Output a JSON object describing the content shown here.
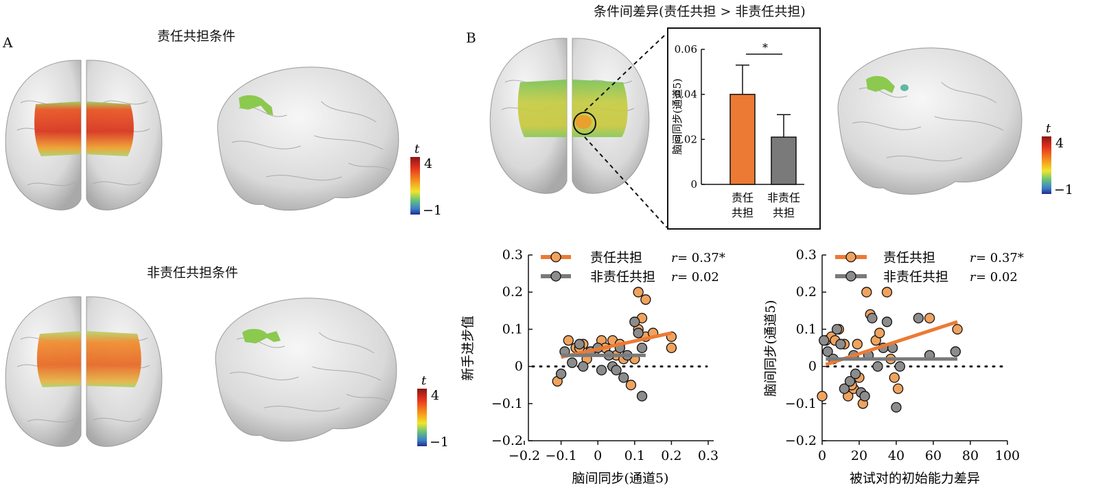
{
  "panel_a": {
    "label": "A",
    "title_top": "责任共担条件",
    "title_bottom": "非责任共担条件",
    "colorbar": {
      "symbol": "t",
      "max_label": "4",
      "min_label": "−1"
    }
  },
  "panel_b": {
    "label": "B",
    "title": "条件间差异(责任共担 > 非责任共担)",
    "colorbar": {
      "symbol": "t",
      "max_label": "4",
      "min_label": "−1"
    }
  },
  "inset_bar": {
    "ylabel": "脑间同步(通道5)",
    "yticks": [
      "0",
      "0.02",
      "0.04",
      "0.06"
    ],
    "sig_marker": "*",
    "cat1_l1": "责任",
    "cat1_l2": "共担",
    "cat2_l1": "非责任",
    "cat2_l2": "共担"
  },
  "scatter_left": {
    "ylabel": "新手进步值",
    "xlabel": "脑间同步(通道5)",
    "xticks": [
      "−0.2",
      "−0.1",
      "0",
      "0.1",
      "0.2",
      "0.3"
    ],
    "yticks": [
      "0.3",
      "0.2",
      "0.1",
      "0",
      "−0.1",
      "−0.2"
    ],
    "legend1": "责任共担",
    "r1": "= 0.37*",
    "legend2": "非责任共担",
    "r2": "= 0.02",
    "r_symbol": "r"
  },
  "scatter_right": {
    "ylabel": "脑间同步(通道5)",
    "xlabel": "被试对的初始能力差异",
    "xticks": [
      "0",
      "20",
      "40",
      "60",
      "80",
      "100"
    ],
    "yticks": [
      "0.3",
      "0.2",
      "0.1",
      "0",
      "−0.1",
      "−0.2"
    ],
    "legend1": "责任共担",
    "r1": "= 0.37*",
    "legend2": "非责任共担",
    "r2": "= 0.02",
    "r_symbol": "r"
  },
  "colors": {
    "orange": "#EC7A34",
    "gray": "#7A7A7A"
  },
  "chart_data": [
    {
      "type": "bar",
      "categories": [
        "责任共担",
        "非责任共担"
      ],
      "values": [
        0.04,
        0.021
      ],
      "error": [
        0.013,
        0.01
      ],
      "ylabel": "脑间同步(通道5)",
      "ylim": [
        0,
        0.06
      ],
      "significance": "*"
    },
    {
      "type": "scatter",
      "xlabel": "脑间同步(通道5)",
      "ylabel": "新手进步值",
      "xlim": [
        -0.2,
        0.3
      ],
      "ylim": [
        -0.2,
        0.3
      ],
      "series": [
        {
          "name": "责任共担",
          "r": "0.37*",
          "fit": [
            [
              -0.1,
              0.025
            ],
            [
              0.2,
              0.09
            ]
          ],
          "points": [
            [
              -0.08,
              0.07
            ],
            [
              -0.06,
              0.05
            ],
            [
              -0.04,
              0.06
            ],
            [
              -0.03,
              0.02
            ],
            [
              -0.01,
              0.04
            ],
            [
              0.01,
              0.07
            ],
            [
              0.02,
              0.05
            ],
            [
              0.04,
              0.07
            ],
            [
              0.05,
              0.03
            ],
            [
              0.07,
              0.02
            ],
            [
              0.09,
              -0.05
            ],
            [
              0.1,
              0.02
            ],
            [
              0.11,
              0.2
            ],
            [
              0.12,
              0.13
            ],
            [
              0.13,
              0.08
            ],
            [
              0.13,
              0.18
            ],
            [
              0.15,
              0.09
            ],
            [
              0.2,
              0.08
            ],
            [
              0.2,
              0.05
            ],
            [
              -0.11,
              -0.04
            ],
            [
              -0.05,
              0.05
            ],
            [
              0.06,
              0.06
            ],
            [
              0.11,
              0.1
            ]
          ]
        },
        {
          "name": "非责任共担",
          "r": "0.02",
          "fit": [
            [
              -0.1,
              0.03
            ],
            [
              0.13,
              0.03
            ]
          ],
          "points": [
            [
              -0.09,
              0.04
            ],
            [
              -0.07,
              0.01
            ],
            [
              -0.05,
              0.06
            ],
            [
              -0.04,
              0.0
            ],
            [
              -0.02,
              0.04
            ],
            [
              0.0,
              0.05
            ],
            [
              0.01,
              -0.01
            ],
            [
              0.03,
              0.03
            ],
            [
              0.04,
              0.0
            ],
            [
              0.05,
              -0.01
            ],
            [
              0.06,
              0.05
            ],
            [
              0.08,
              0.03
            ],
            [
              0.1,
              0.12
            ],
            [
              0.11,
              0.09
            ],
            [
              0.12,
              0.05
            ],
            [
              0.12,
              -0.08
            ],
            [
              -0.1,
              -0.02
            ],
            [
              0.07,
              -0.03
            ]
          ]
        }
      ]
    },
    {
      "type": "scatter",
      "xlabel": "被试对的初始能力差异",
      "ylabel": "脑间同步(通道5)",
      "xlim": [
        0,
        100
      ],
      "ylim": [
        -0.2,
        0.3
      ],
      "series": [
        {
          "name": "责任共担",
          "r": "0.37*",
          "fit": [
            [
              2,
              0.005
            ],
            [
              73,
              0.12
            ]
          ],
          "points": [
            [
              0,
              -0.08
            ],
            [
              2,
              0.07
            ],
            [
              5,
              0.08
            ],
            [
              7,
              0.07
            ],
            [
              9,
              0.1
            ],
            [
              12,
              0.06
            ],
            [
              14,
              -0.08
            ],
            [
              17,
              -0.06
            ],
            [
              19,
              0.06
            ],
            [
              22,
              -0.1
            ],
            [
              24,
              0.2
            ],
            [
              26,
              0.14
            ],
            [
              29,
              0.07
            ],
            [
              31,
              0.09
            ],
            [
              35,
              0.2
            ],
            [
              37,
              0.02
            ],
            [
              39,
              -0.03
            ],
            [
              41,
              -0.06
            ],
            [
              58,
              0.13
            ],
            [
              73,
              0.1
            ],
            [
              16,
              -0.05
            ],
            [
              20,
              -0.03
            ]
          ]
        },
        {
          "name": "非责任共担",
          "r": "0.02",
          "fit": [
            [
              2,
              0.02
            ],
            [
              73,
              0.02
            ]
          ],
          "points": [
            [
              1,
              0.07
            ],
            [
              3,
              0.04
            ],
            [
              6,
              0.02
            ],
            [
              8,
              0.1
            ],
            [
              10,
              0.06
            ],
            [
              12,
              -0.06
            ],
            [
              15,
              -0.04
            ],
            [
              17,
              0.03
            ],
            [
              21,
              -0.07
            ],
            [
              23,
              -0.08
            ],
            [
              25,
              0.03
            ],
            [
              27,
              0.13
            ],
            [
              30,
              0.0
            ],
            [
              33,
              0.05
            ],
            [
              35,
              0.12
            ],
            [
              38,
              0.05
            ],
            [
              40,
              -0.11
            ],
            [
              42,
              0.0
            ],
            [
              52,
              0.13
            ],
            [
              58,
              0.03
            ],
            [
              72,
              0.04
            ],
            [
              18,
              -0.02
            ]
          ]
        }
      ]
    }
  ]
}
